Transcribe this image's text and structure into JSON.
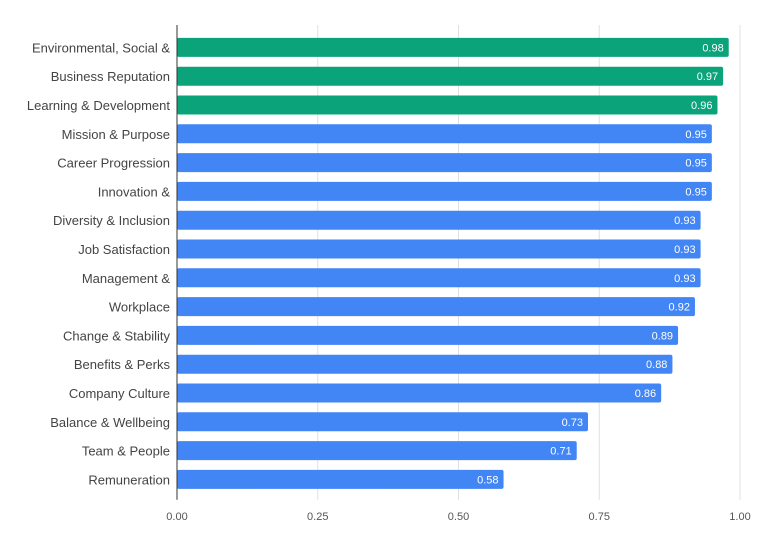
{
  "chart_data": {
    "type": "bar",
    "orientation": "horizontal",
    "categories": [
      "Environmental, Social &",
      "Business Reputation",
      "Learning & Development",
      "Mission & Purpose",
      "Career Progression",
      "Innovation &",
      "Diversity & Inclusion",
      "Job Satisfaction",
      "Management &",
      "Workplace",
      "Change & Stability",
      "Benefits & Perks",
      "Company Culture",
      "Balance & Wellbeing",
      "Team & People",
      "Remuneration"
    ],
    "values": [
      0.98,
      0.97,
      0.96,
      0.95,
      0.95,
      0.95,
      0.93,
      0.93,
      0.93,
      0.92,
      0.89,
      0.88,
      0.86,
      0.73,
      0.71,
      0.58
    ],
    "value_labels": [
      "0.98",
      "0.97",
      "0.96",
      "0.95",
      "0.95",
      "0.95",
      "0.93",
      "0.93",
      "0.93",
      "0.92",
      "0.89",
      "0.88",
      "0.86",
      "0.73",
      "0.71",
      "0.58"
    ],
    "highlighted_count": 3,
    "colors": {
      "highlight": "#0aa37a",
      "default": "#4285f4"
    },
    "xlim": [
      0,
      1
    ],
    "x_ticks": [
      0,
      0.25,
      0.5,
      0.75,
      1
    ],
    "x_tick_labels": [
      "0.00",
      "0.25",
      "0.50",
      "0.75",
      "1.00"
    ],
    "grid": true,
    "title": "",
    "xlabel": "",
    "ylabel": ""
  }
}
